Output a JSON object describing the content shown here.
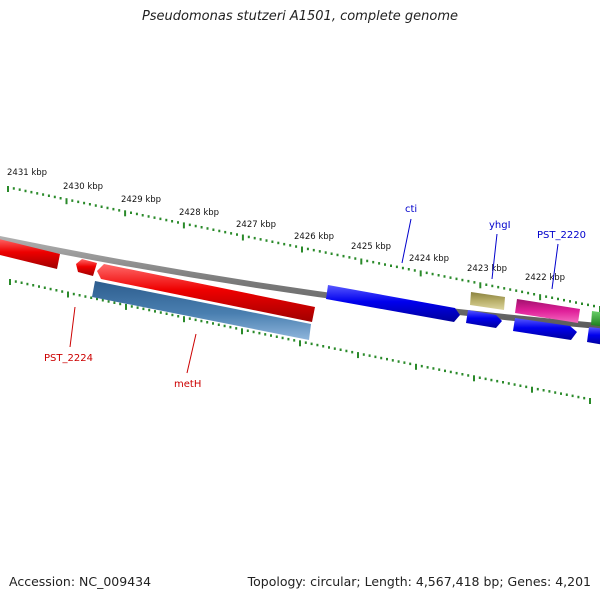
{
  "title": "Pseudomonas stutzeri A1501, complete genome",
  "footer": {
    "accession": "Accession: NC_009434",
    "summary": "Topology: circular; Length: 4,567,418 bp; Genes: 4,201"
  },
  "scale": {
    "unit": "kbp",
    "ticks": [
      "2431 kbp",
      "2430 kbp",
      "2429 kbp",
      "2428 kbp",
      "2427 kbp",
      "2426 kbp",
      "2425 kbp",
      "2424 kbp",
      "2423 kbp",
      "2422 kbp"
    ]
  },
  "genes": [
    {
      "name": "PST_2224",
      "color": "#cc0000",
      "labeled": true
    },
    {
      "name": "metH",
      "color": "#cc0000",
      "labeled": true
    },
    {
      "name": "cti",
      "color": "#0000cc",
      "labeled": true
    },
    {
      "name": "yhgI",
      "color": "#0000cc",
      "labeled": true
    },
    {
      "name": "PST_2220",
      "color": "#0000cc",
      "labeled": true
    }
  ],
  "colors": {
    "forward_strand": "#0000ee",
    "reverse_strand": "#ee0000",
    "steelblue_feature": "#4a7fb0",
    "khaki_feature": "#b9b06a",
    "pink_feature": "#e0209a",
    "green_feature": "#2a9a2a",
    "backbone": "#8a8a8a",
    "tick_green": "#2a8a2a"
  }
}
